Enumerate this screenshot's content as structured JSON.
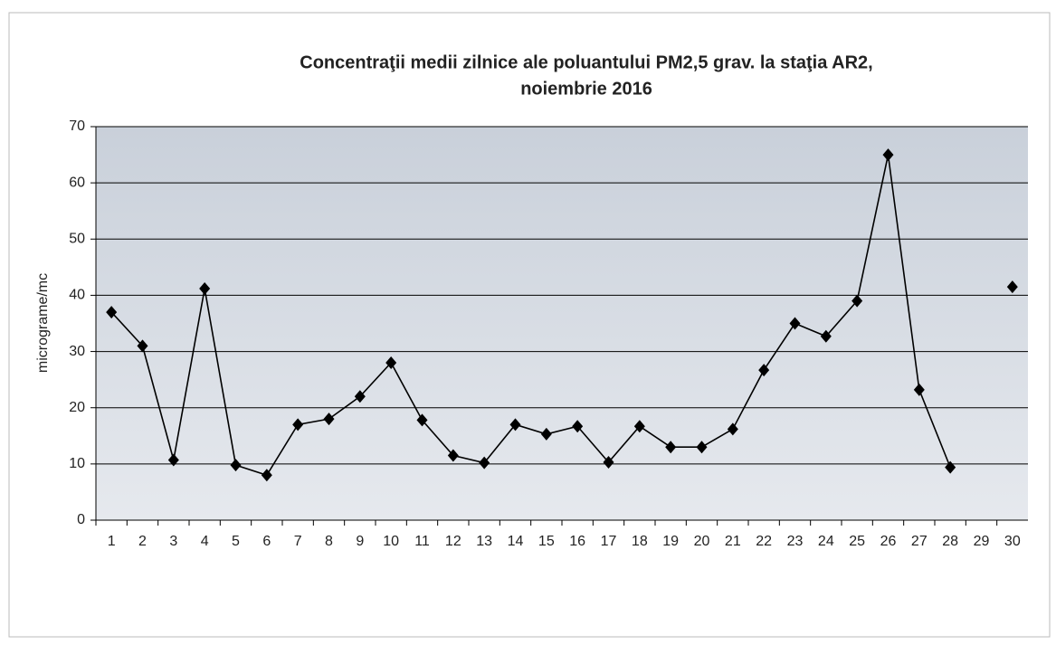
{
  "chart_data": {
    "type": "line",
    "title": [
      "Concentraţii medii zilnice ale poluantului PM2,5 grav. la staţia AR2,",
      "noiembrie 2016"
    ],
    "ylabel": "micrograme/mc",
    "categories": [
      "1",
      "2",
      "3",
      "4",
      "5",
      "6",
      "7",
      "8",
      "9",
      "10",
      "11",
      "12",
      "13",
      "14",
      "15",
      "16",
      "17",
      "18",
      "19",
      "20",
      "21",
      "22",
      "23",
      "24",
      "25",
      "26",
      "27",
      "28",
      "29",
      "30"
    ],
    "series": [
      {
        "color": "#000000",
        "values": [
          37,
          31,
          10.7,
          41.2,
          9.8,
          8,
          17,
          18,
          22,
          28,
          17.8,
          11.5,
          10.2,
          17,
          15.3,
          16.7,
          10.3,
          16.7,
          13,
          13,
          16.2,
          26.7,
          35,
          32.7,
          39,
          65,
          23.2,
          9.4,
          null,
          41.5
        ]
      }
    ],
    "ylim": [
      0,
      70
    ],
    "yticks": [
      0,
      10,
      20,
      30,
      40,
      50,
      60,
      70
    ],
    "grid": true
  }
}
